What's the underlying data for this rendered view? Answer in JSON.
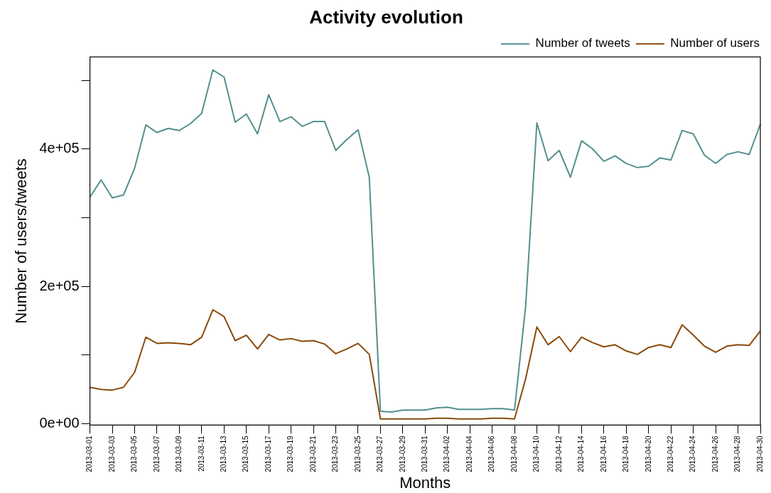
{
  "chart_data": {
    "type": "line",
    "title": "Activity evolution",
    "xlabel": "Months",
    "ylabel": "Number of users/tweets",
    "categories": [
      "2013-03-01",
      null,
      "2013-03-03",
      null,
      "2013-03-05",
      null,
      "2013-03-07",
      null,
      "2013-03-09",
      null,
      "2013-03-11",
      null,
      "2013-03-13",
      null,
      "2013-03-15",
      null,
      "2013-03-17",
      null,
      "2013-03-19",
      null,
      "2013-03-21",
      null,
      "2013-03-23",
      null,
      "2013-03-25",
      null,
      "2013-03-27",
      null,
      "2013-03-29",
      null,
      "2013-03-31",
      null,
      "2013-04-02",
      null,
      "2013-04-04",
      null,
      "2013-04-06",
      null,
      "2013-04-08",
      null,
      "2013-04-10",
      null,
      "2013-04-12",
      null,
      "2013-04-14",
      null,
      "2013-04-16",
      null,
      "2013-04-18",
      null,
      "2013-04-20",
      null,
      "2013-04-22",
      null,
      "2013-04-24",
      null,
      "2013-04-26",
      null,
      "2013-04-28",
      null,
      "2013-04-30"
    ],
    "series": [
      {
        "name": "Number of tweets",
        "color": "#53908f",
        "values": [
          330000,
          355000,
          329000,
          333000,
          372000,
          435000,
          424000,
          430000,
          427000,
          437000,
          452000,
          515000,
          505000,
          439000,
          451000,
          422000,
          479000,
          440000,
          447000,
          433000,
          440000,
          440000,
          398000,
          414000,
          428000,
          359000,
          18000,
          17000,
          20000,
          20000,
          20000,
          23000,
          24000,
          21000,
          21000,
          21000,
          22000,
          22000,
          20000,
          172000,
          438000,
          383000,
          398000,
          359000,
          412000,
          400000,
          382000,
          390000,
          379000,
          373000,
          375000,
          387000,
          384000,
          427000,
          422000,
          391000,
          379000,
          392000,
          396000,
          392000,
          436000
        ]
      },
      {
        "name": "Number of users",
        "color": "#8b4a0b",
        "values": [
          53000,
          50000,
          49000,
          53000,
          75000,
          126000,
          117000,
          118000,
          117000,
          115000,
          126000,
          166000,
          156000,
          121000,
          129000,
          109000,
          130000,
          122000,
          124000,
          120000,
          121000,
          116000,
          102000,
          109000,
          117000,
          101000,
          7000,
          7000,
          7000,
          7000,
          7000,
          8000,
          8000,
          7000,
          7000,
          7000,
          8000,
          8000,
          7000,
          66000,
          141000,
          115000,
          127000,
          105000,
          126000,
          118000,
          112000,
          115000,
          106000,
          101000,
          111000,
          115000,
          111000,
          144000,
          129000,
          113000,
          104000,
          113000,
          115000,
          114000,
          135000
        ]
      }
    ],
    "ylim": [
      -2000,
      534000
    ],
    "yticks": [
      {
        "value": 0,
        "label": "0e+00"
      },
      {
        "value": 100000,
        "label": null
      },
      {
        "value": 200000,
        "label": "2e+05"
      },
      {
        "value": 300000,
        "label": null
      },
      {
        "value": 400000,
        "label": "4e+05"
      },
      {
        "value": 500000,
        "label": null
      }
    ],
    "grid": false,
    "legend": "top right",
    "marker": "none",
    "line_style": "solid"
  }
}
